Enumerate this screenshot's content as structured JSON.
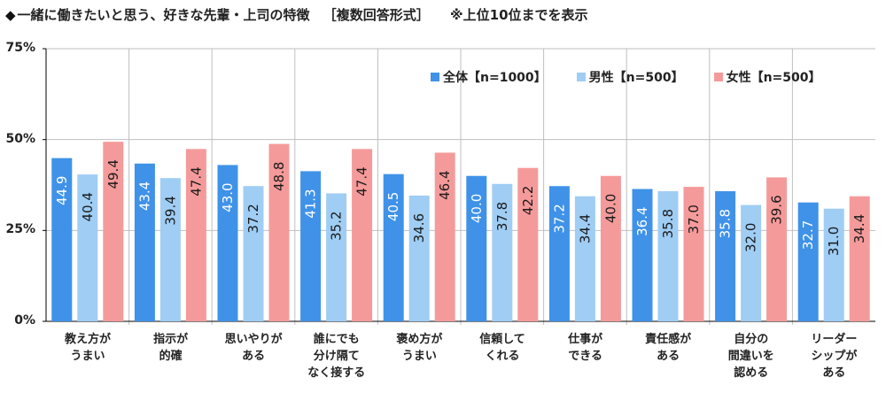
{
  "title": "一緒に働きたいと思う、好きな先輩・上司の特徴",
  "subtitle": "［複数回答形式］",
  "note": "※上位10位までを表示",
  "title_bullet": "◆",
  "colors": {
    "all": "#3f92e8",
    "male": "#9fcdf4",
    "female": "#f59a9a",
    "grid": "#bfbfbf",
    "axis": "#000000"
  },
  "chart_data": {
    "type": "bar",
    "ylim": [
      0,
      75
    ],
    "yticks": [
      "0%",
      "25%",
      "50%",
      "75%"
    ],
    "ytick_values": [
      0,
      25,
      50,
      75
    ],
    "legend_position": "top-right",
    "categories": [
      "教え方が\nうまい",
      "指示が\n的確",
      "思いやりが\nある",
      "誰にでも\n分け隔て\nなく接する",
      "褒め方が\nうまい",
      "信頼して\nくれる",
      "仕事が\nできる",
      "責任感が\nある",
      "自分の\n間違いを\n認める",
      "リーダー\nシップが\nある"
    ],
    "series": [
      {
        "name": "全体【n=1000】",
        "values": [
          44.9,
          43.4,
          43.0,
          41.3,
          40.5,
          40.0,
          37.2,
          36.4,
          35.8,
          32.7
        ]
      },
      {
        "name": "男性【n=500】",
        "values": [
          40.4,
          39.4,
          37.2,
          35.2,
          34.6,
          37.8,
          34.4,
          35.8,
          32.0,
          31.0
        ]
      },
      {
        "name": "女性【n=500】",
        "values": [
          49.4,
          47.4,
          48.8,
          47.4,
          46.4,
          42.2,
          40.0,
          37.0,
          39.6,
          34.4
        ]
      }
    ],
    "value_labels": [
      [
        "44.9",
        "43.4",
        "43.0",
        "41.3",
        "40.5",
        "40.0",
        "37.2",
        "36.4",
        "35.8",
        "32.7"
      ],
      [
        "40.4",
        "39.4",
        "37.2",
        "35.2",
        "34.6",
        "37.8",
        "34.4",
        "35.8",
        "32.0",
        "31.0"
      ],
      [
        "49.4",
        "47.4",
        "48.8",
        "47.4",
        "46.4",
        "42.2",
        "40.0",
        "37.0",
        "39.6",
        "34.4"
      ]
    ]
  }
}
